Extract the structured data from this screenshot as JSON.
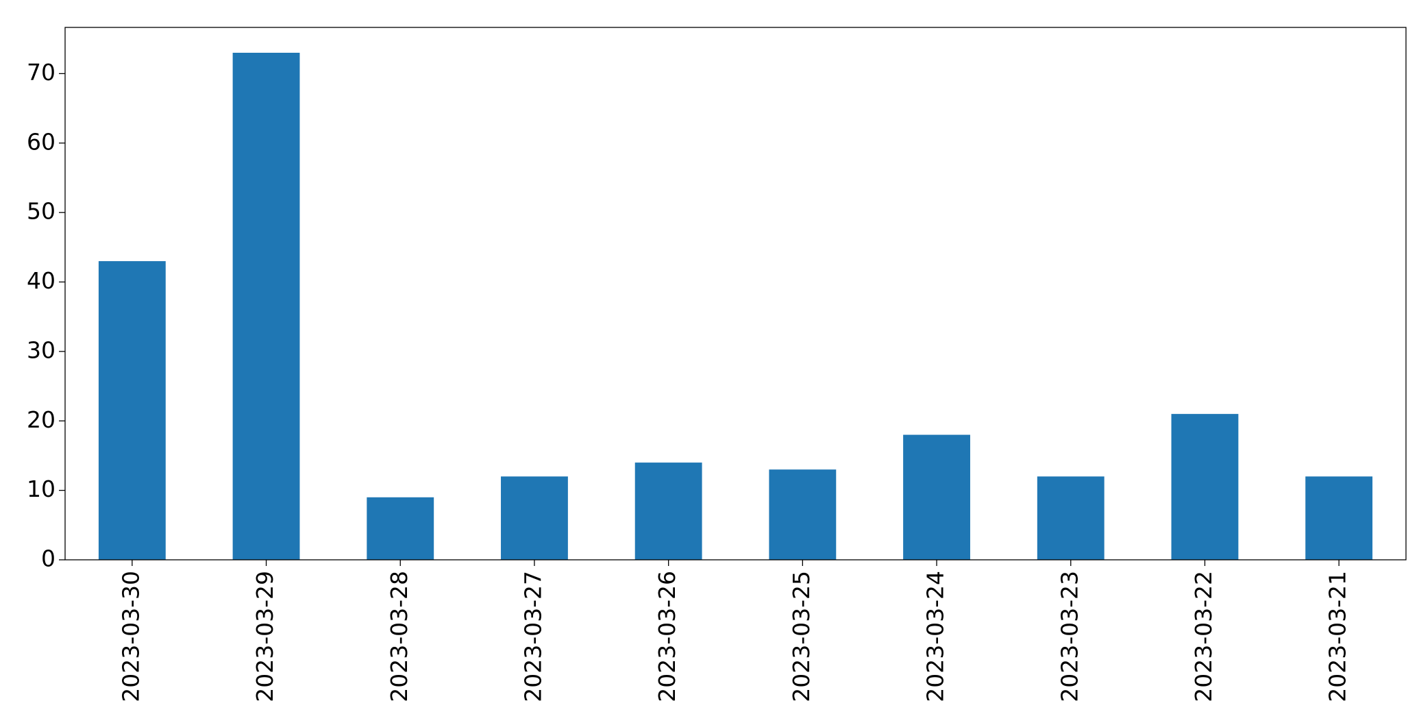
{
  "chart_data": {
    "type": "bar",
    "categories": [
      "2023-03-30",
      "2023-03-29",
      "2023-03-28",
      "2023-03-27",
      "2023-03-26",
      "2023-03-25",
      "2023-03-24",
      "2023-03-23",
      "2023-03-22",
      "2023-03-21"
    ],
    "values": [
      43,
      73,
      9,
      12,
      14,
      13,
      18,
      12,
      21,
      12
    ],
    "color": "#1f77b4",
    "ylim": [
      0,
      76.65
    ],
    "yticks": [
      0,
      10,
      20,
      30,
      40,
      50,
      60,
      70
    ],
    "grid": false
  }
}
